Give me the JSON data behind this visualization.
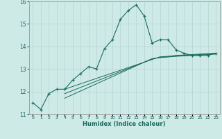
{
  "xlabel": "Humidex (Indice chaleur)",
  "x_values": [
    0,
    1,
    2,
    3,
    4,
    5,
    6,
    7,
    8,
    9,
    10,
    11,
    12,
    13,
    14,
    15,
    16,
    17,
    18,
    19,
    20,
    21,
    22,
    23
  ],
  "main_line": [
    11.5,
    11.2,
    11.9,
    12.1,
    12.1,
    12.5,
    12.8,
    13.1,
    13.0,
    13.9,
    14.3,
    15.2,
    15.6,
    15.85,
    15.35,
    14.15,
    14.3,
    14.3,
    13.85,
    13.7,
    13.6,
    13.6,
    13.6,
    13.7
  ],
  "reg_line1_x": [
    4,
    5,
    6,
    7,
    8,
    9,
    10,
    11,
    12,
    13,
    14,
    15,
    16,
    17,
    18,
    19,
    20,
    21,
    22,
    23
  ],
  "reg_line1_y": [
    12.1,
    12.22,
    12.34,
    12.46,
    12.58,
    12.7,
    12.82,
    12.94,
    13.06,
    13.18,
    13.3,
    13.42,
    13.54,
    13.56,
    13.6,
    13.62,
    13.64,
    13.66,
    13.68,
    13.7
  ],
  "reg_line2_x": [
    4,
    5,
    6,
    7,
    8,
    9,
    10,
    11,
    12,
    13,
    14,
    15,
    16,
    17,
    18,
    19,
    20,
    21,
    22,
    23
  ],
  "reg_line2_y": [
    11.9,
    12.04,
    12.18,
    12.32,
    12.46,
    12.6,
    12.74,
    12.88,
    13.02,
    13.16,
    13.3,
    13.44,
    13.52,
    13.55,
    13.58,
    13.6,
    13.62,
    13.64,
    13.66,
    13.68
  ],
  "reg_line3_x": [
    4,
    5,
    6,
    7,
    8,
    9,
    10,
    11,
    12,
    13,
    14,
    15,
    16,
    17,
    18,
    19,
    20,
    21,
    22,
    23
  ],
  "reg_line3_y": [
    11.7,
    11.86,
    12.02,
    12.18,
    12.34,
    12.5,
    12.66,
    12.82,
    12.98,
    13.14,
    13.3,
    13.46,
    13.5,
    13.53,
    13.56,
    13.58,
    13.6,
    13.62,
    13.64,
    13.66
  ],
  "line_color": "#1a6b5a",
  "bg_color": "#ceeae7",
  "grid_color": "#b8d8d5",
  "ylim": [
    11.0,
    16.0
  ],
  "xlim": [
    -0.5,
    23.5
  ],
  "yticks": [
    11,
    12,
    13,
    14,
    15,
    16
  ],
  "xtick_labels": [
    "0",
    "1",
    "2",
    "3",
    "4",
    "5",
    "6",
    "7",
    "8",
    "9",
    "10",
    "11",
    "12",
    "13",
    "14",
    "15",
    "16",
    "17",
    "18",
    "19",
    "20",
    "21",
    "22",
    "23"
  ]
}
